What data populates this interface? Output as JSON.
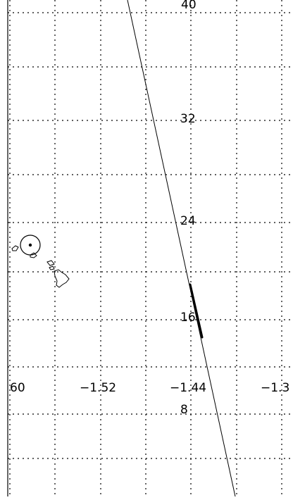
{
  "map": {
    "graticule": {
      "longitude_labels": [
        "60",
        "−1.52",
        "−1.44",
        "−1.3"
      ],
      "latitude_labels": [
        "40",
        "32",
        "24",
        "16",
        "8"
      ],
      "line_style": "dotted",
      "color": "#000000"
    },
    "features": {
      "ground_track": "thin diagonal line",
      "highlighted_segment": "bold segment",
      "station_marker": "circle with center dot",
      "landmass": "island outlines"
    },
    "colors": {
      "background": "#ffffff",
      "ink": "#000000"
    }
  }
}
